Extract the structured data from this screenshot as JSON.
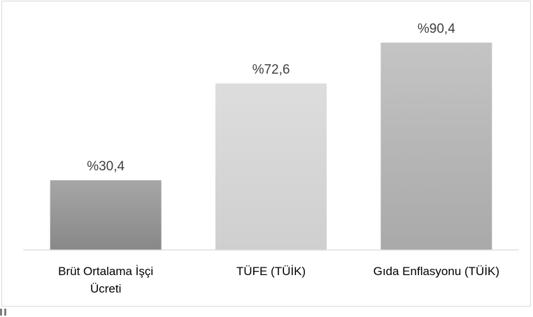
{
  "chart_data": {
    "type": "bar",
    "categories": [
      [
        "Brüt Ortalama İşçi",
        "Ücreti"
      ],
      [
        "TÜFE (TÜİK)"
      ],
      [
        "Gıda Enflasyonu (TÜİK)"
      ]
    ],
    "values": [
      30.4,
      72.6,
      90.4
    ],
    "data_labels": [
      "%30,4",
      "%72,6",
      "%90,4"
    ],
    "ylim": [
      0,
      100
    ],
    "grid": false,
    "legend": "none",
    "bar_colors": [
      {
        "top": "#a6a6a6",
        "bottom": "#888888"
      },
      {
        "top": "#dddddd",
        "bottom": "#cfcfcf"
      },
      {
        "top": "#c4c4c4",
        "bottom": "#a9a9a9"
      }
    ],
    "axis_color": "#d9d9d9"
  }
}
